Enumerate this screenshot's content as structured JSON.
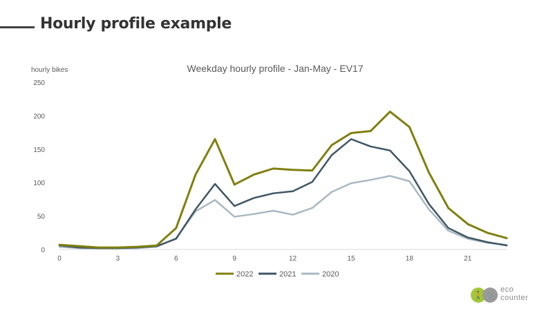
{
  "slide": {
    "title": "Hourly profile example"
  },
  "logo": {
    "line1": "eco",
    "line2": "counter",
    "colors": [
      "#a4c639",
      "#9a9a9a"
    ]
  },
  "chart_data": {
    "type": "line",
    "title": "Weekday hourly profile - Jan-May  - EV17",
    "xlabel": "",
    "ylabel": "hourly bikes",
    "x": [
      0,
      1,
      2,
      3,
      4,
      5,
      6,
      7,
      8,
      9,
      10,
      11,
      12,
      13,
      14,
      15,
      16,
      17,
      18,
      19,
      20,
      21,
      22,
      23
    ],
    "xticks": [
      0,
      3,
      6,
      9,
      12,
      15,
      18,
      21
    ],
    "xlim": [
      0,
      23
    ],
    "ylim": [
      0,
      250
    ],
    "yticks": [
      0,
      50,
      100,
      150,
      200,
      250
    ],
    "grid": false,
    "legend_position": "bottom-center",
    "series": [
      {
        "name": "2022",
        "color": "#7f7f0f",
        "values": [
          7,
          5,
          3,
          3,
          4,
          6,
          32,
          112,
          165,
          97,
          112,
          121,
          119,
          118,
          156,
          174,
          177,
          206,
          183,
          115,
          62,
          38,
          25,
          17
        ]
      },
      {
        "name": "2021",
        "color": "#3f5663",
        "values": [
          6,
          3,
          2,
          2,
          3,
          5,
          16,
          60,
          98,
          65,
          77,
          84,
          87,
          101,
          141,
          165,
          154,
          148,
          117,
          68,
          32,
          18,
          11,
          6
        ]
      },
      {
        "name": "2020",
        "color": "#a9b8c1",
        "values": [
          4,
          2,
          2,
          2,
          2,
          4,
          17,
          57,
          74,
          49,
          53,
          58,
          52,
          62,
          86,
          99,
          104,
          110,
          102,
          60,
          28,
          16,
          10,
          7
        ]
      }
    ]
  }
}
